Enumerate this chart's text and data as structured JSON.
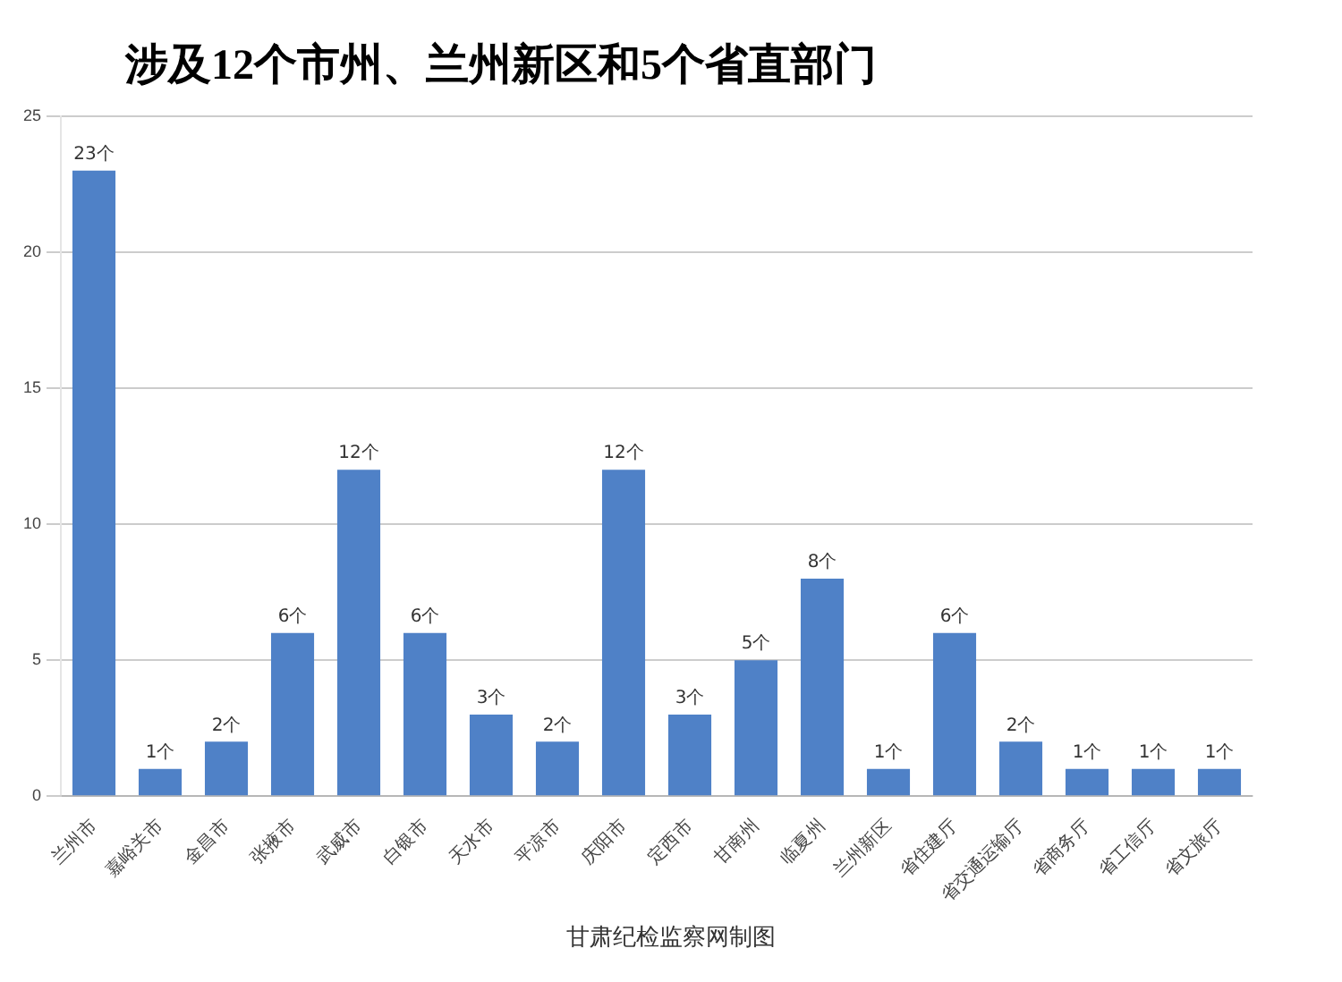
{
  "chart_data": {
    "type": "bar",
    "title": "涉及12个市州、兰州新区和5个省直部门",
    "categories": [
      "兰州市",
      "嘉峪关市",
      "金昌市",
      "张掖市",
      "武威市",
      "白银市",
      "天水市",
      "平凉市",
      "庆阳市",
      "定西市",
      "甘南州",
      "临夏州",
      "兰州新区",
      "省住建厅",
      "省交通运输厅",
      "省商务厅",
      "省工信厅",
      "省文旅厅"
    ],
    "values": [
      23,
      1,
      2,
      6,
      12,
      6,
      3,
      2,
      12,
      3,
      5,
      8,
      1,
      6,
      2,
      1,
      1,
      1
    ],
    "value_labels": [
      "23个",
      "1个",
      "2个",
      "6个",
      "12个",
      "6个",
      "3个",
      "2个",
      "12个",
      "3个",
      "5个",
      "8个",
      "1个",
      "6个",
      "2个",
      "1个",
      "1个",
      "1个"
    ],
    "color": "#4f81c7",
    "ylim": [
      0,
      25
    ],
    "yticks": [
      0,
      5,
      10,
      15,
      20,
      25
    ],
    "grid": "y",
    "annotations": [
      "甘肃纪检监察网制图"
    ]
  }
}
